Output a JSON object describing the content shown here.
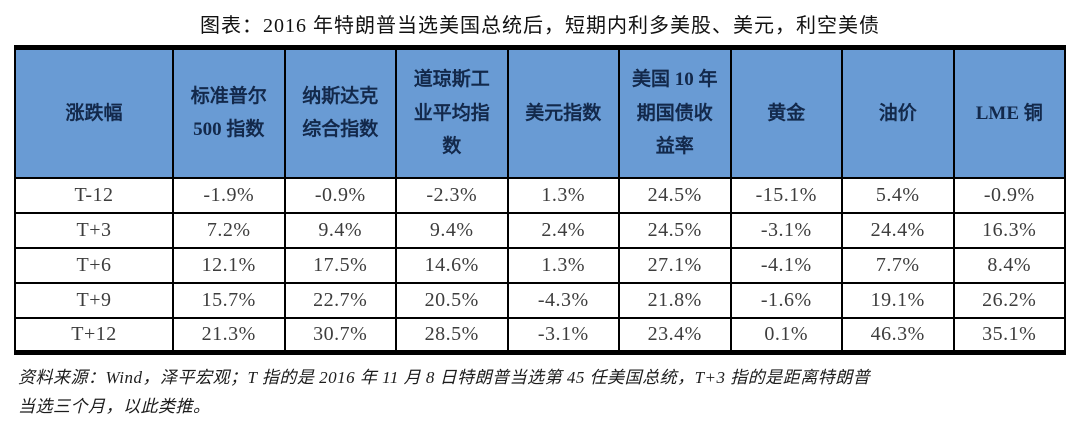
{
  "title": "图表：2016 年特朗普当选美国总统后，短期内利多美股、美元，利空美债",
  "colors": {
    "header_bg": "#699bd4",
    "header_text": "#13294b",
    "border": "#000000",
    "body_text": "#3d3d3d"
  },
  "chart_data": {
    "type": "table",
    "title": "图表：2016 年特朗普当选美国总统后，短期内利多美股、美元，利空美债",
    "columns": [
      "涨跌幅",
      "标准普尔 500 指数",
      "纳斯达克综合指数",
      "道琼斯工业平均指数",
      "美元指数",
      "美国 10 年期国债收益率",
      "黄金",
      "油价",
      "LME 铜"
    ],
    "rows": [
      {
        "label": "T-12",
        "values": [
          "-1.9%",
          "-0.9%",
          "-2.3%",
          "1.3%",
          "24.5%",
          "-15.1%",
          "5.4%",
          "-0.9%"
        ]
      },
      {
        "label": "T+3",
        "values": [
          "7.2%",
          "9.4%",
          "9.4%",
          "2.4%",
          "24.5%",
          "-3.1%",
          "24.4%",
          "16.3%"
        ]
      },
      {
        "label": "T+6",
        "values": [
          "12.1%",
          "17.5%",
          "14.6%",
          "1.3%",
          "27.1%",
          "-4.1%",
          "7.7%",
          "8.4%"
        ]
      },
      {
        "label": "T+9",
        "values": [
          "15.7%",
          "22.7%",
          "20.5%",
          "-4.3%",
          "21.8%",
          "-1.6%",
          "19.1%",
          "26.2%"
        ]
      },
      {
        "label": "T+12",
        "values": [
          "21.3%",
          "30.7%",
          "28.5%",
          "-3.1%",
          "23.4%",
          "0.1%",
          "46.3%",
          "35.1%"
        ]
      }
    ],
    "source_note": "资料来源：Wind，泽平宏观；T 指的是 2016 年 11 月 8 日特朗普当选第 45 任美国总统，T+3 指的是距离特朗普当选三个月，以此类推。"
  },
  "footer": {
    "line1": "资料来源：Wind，泽平宏观；T 指的是 2016 年 11 月 8 日特朗普当选第 45 任美国总统，T+3 指的是距离特朗普",
    "line2": "当选三个月，以此类推。"
  }
}
